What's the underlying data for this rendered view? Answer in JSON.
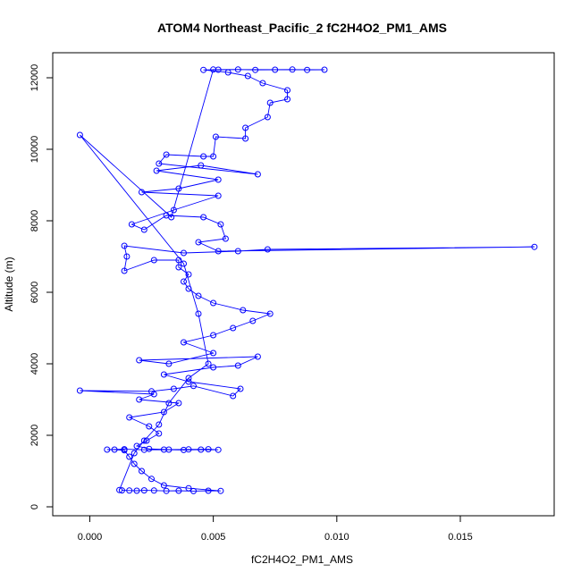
{
  "chart_data": {
    "type": "line",
    "title": "ATOM4 Northeast_Pacific_2 fC2H4O2_PM1_AMS",
    "xlabel": "fC2H4O2_PM1_AMS",
    "ylabel": "Altitude (m)",
    "xlim": [
      -0.0015,
      0.0188
    ],
    "ylim": [
      -250,
      12700
    ],
    "x_ticks": [
      0.0,
      0.005,
      0.01,
      0.015
    ],
    "x_tick_labels": [
      "0.000",
      "0.005",
      "0.010",
      "0.015"
    ],
    "y_ticks": [
      0,
      2000,
      4000,
      6000,
      8000,
      10000,
      12000
    ],
    "y_tick_labels": [
      "0",
      "2000",
      "4000",
      "6000",
      "8000",
      "10000",
      "12000"
    ],
    "grid": false,
    "legend": "none",
    "series": [
      {
        "color": "#0000ff",
        "marker": "open-circle",
        "points": [
          [
            0.0013,
            460
          ],
          [
            0.0016,
            455
          ],
          [
            0.0019,
            450
          ],
          [
            0.0022,
            460
          ],
          [
            0.0026,
            455
          ],
          [
            0.0031,
            445
          ],
          [
            0.0036,
            450
          ],
          [
            0.0042,
            440
          ],
          [
            0.0048,
            450
          ],
          [
            0.0053,
            445
          ],
          [
            0.004,
            520
          ],
          [
            0.003,
            600
          ],
          [
            0.0025,
            780
          ],
          [
            0.0021,
            1000
          ],
          [
            0.0018,
            1200
          ],
          [
            0.0016,
            1400
          ],
          [
            0.0014,
            1580
          ],
          [
            0.001,
            1600
          ],
          [
            0.0007,
            1600
          ],
          [
            0.0014,
            1610
          ],
          [
            0.0022,
            1595
          ],
          [
            0.003,
            1600
          ],
          [
            0.0038,
            1590
          ],
          [
            0.0045,
            1600
          ],
          [
            0.0052,
            1595
          ],
          [
            0.0048,
            1610
          ],
          [
            0.004,
            1605
          ],
          [
            0.0032,
            1600
          ],
          [
            0.0024,
            1620
          ],
          [
            0.0019,
            1700
          ],
          [
            0.0023,
            1850
          ],
          [
            0.0028,
            2050
          ],
          [
            0.0024,
            2250
          ],
          [
            0.0016,
            2500
          ],
          [
            0.003,
            2650
          ],
          [
            0.0036,
            2900
          ],
          [
            0.002,
            3000
          ],
          [
            0.0026,
            3150
          ],
          [
            -0.0004,
            3250
          ],
          [
            0.0025,
            3230
          ],
          [
            0.0034,
            3300
          ],
          [
            0.0042,
            3380
          ],
          [
            0.0058,
            3100
          ],
          [
            0.0061,
            3300
          ],
          [
            0.004,
            3500
          ],
          [
            0.003,
            3700
          ],
          [
            0.005,
            3900
          ],
          [
            0.006,
            3950
          ],
          [
            0.0068,
            4200
          ],
          [
            0.002,
            4100
          ],
          [
            0.0032,
            4000
          ],
          [
            0.005,
            4300
          ],
          [
            0.0038,
            4600
          ],
          [
            0.005,
            4800
          ],
          [
            0.0058,
            5000
          ],
          [
            0.0066,
            5200
          ],
          [
            0.0073,
            5400
          ],
          [
            0.0062,
            5500
          ],
          [
            0.005,
            5700
          ],
          [
            0.0044,
            5900
          ],
          [
            0.004,
            6100
          ],
          [
            0.0038,
            6300
          ],
          [
            0.004,
            6500
          ],
          [
            0.0036,
            6700
          ],
          [
            0.0036,
            6900
          ],
          [
            0.0026,
            6900
          ],
          [
            0.0014,
            6600
          ],
          [
            0.0015,
            7000
          ],
          [
            0.0014,
            7300
          ],
          [
            0.0038,
            7100
          ],
          [
            0.006,
            7150
          ],
          [
            0.0072,
            7200
          ],
          [
            0.018,
            7270
          ],
          [
            0.0052,
            7150
          ],
          [
            0.0044,
            7400
          ],
          [
            0.0055,
            7500
          ],
          [
            0.0053,
            7900
          ],
          [
            0.0046,
            8100
          ],
          [
            0.0031,
            8150
          ],
          [
            0.0022,
            7750
          ],
          [
            0.0017,
            7900
          ],
          [
            0.0034,
            8300
          ],
          [
            0.0052,
            8700
          ],
          [
            0.0021,
            8800
          ],
          [
            0.0036,
            8900
          ],
          [
            0.0052,
            9150
          ],
          [
            0.0027,
            9400
          ],
          [
            0.0045,
            9550
          ],
          [
            0.0068,
            9300
          ],
          [
            0.0028,
            9600
          ],
          [
            0.0031,
            9850
          ],
          [
            0.0046,
            9800
          ],
          [
            0.005,
            9800
          ],
          [
            0.0051,
            10350
          ],
          [
            0.0063,
            10300
          ],
          [
            0.0063,
            10600
          ],
          [
            0.0072,
            10900
          ],
          [
            0.0073,
            11300
          ],
          [
            0.008,
            11400
          ],
          [
            0.008,
            11650
          ],
          [
            0.007,
            11850
          ],
          [
            0.0064,
            12050
          ],
          [
            0.0056,
            12150
          ],
          [
            0.0046,
            12220
          ],
          [
            0.0052,
            12225
          ],
          [
            0.006,
            12230
          ],
          [
            0.0067,
            12220
          ],
          [
            0.0075,
            12225
          ],
          [
            0.0082,
            12230
          ],
          [
            0.0088,
            12220
          ],
          [
            0.0095,
            12225
          ],
          [
            0.005,
            12230
          ],
          [
            0.0033,
            8100
          ],
          [
            -0.0004,
            10400
          ],
          [
            0.0038,
            6800
          ],
          [
            0.0044,
            5400
          ],
          [
            0.0048,
            4000
          ],
          [
            0.004,
            3600
          ],
          [
            0.0032,
            2900
          ],
          [
            0.0028,
            2300
          ],
          [
            0.0022,
            1850
          ],
          [
            0.0018,
            1500
          ],
          [
            0.0012,
            470
          ]
        ]
      }
    ]
  }
}
